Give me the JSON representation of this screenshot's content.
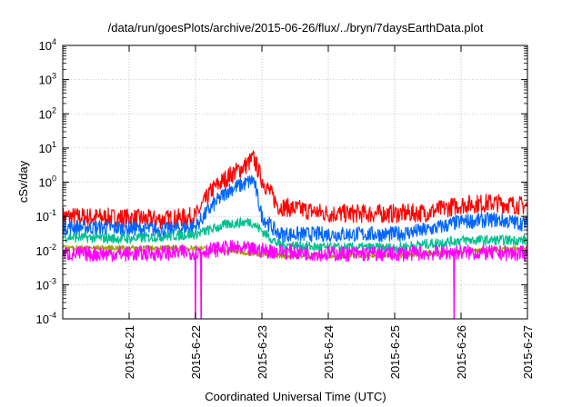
{
  "chart_data": {
    "type": "line",
    "title": "/data/run/goesPlots/archive/2015-06-26/flux/../bryn/7daysEarthData.plot",
    "xlabel": "Coordinated Universal Time (UTC)",
    "ylabel": "cSv/day",
    "y_scale": "log",
    "ylim": [
      0.0001,
      10000
    ],
    "y_ticks": [
      {
        "base": "10",
        "exp": "-4",
        "value": 0.0001
      },
      {
        "base": "10",
        "exp": "-3",
        "value": 0.001
      },
      {
        "base": "10",
        "exp": "-2",
        "value": 0.01
      },
      {
        "base": "10",
        "exp": "-1",
        "value": 0.1
      },
      {
        "base": "10",
        "exp": "0",
        "value": 1
      },
      {
        "base": "10",
        "exp": "1",
        "value": 10
      },
      {
        "base": "10",
        "exp": "2",
        "value": 100
      },
      {
        "base": "10",
        "exp": "3",
        "value": 1000
      },
      {
        "base": "10",
        "exp": "4",
        "value": 10000
      }
    ],
    "xlim": [
      "2015-06-20",
      "2015-06-27"
    ],
    "x_ticks": [
      "2015-6-21",
      "2015-6-22",
      "2015-6-23",
      "2015-6-24",
      "2015-6-25",
      "2015-6-26",
      "2015-6-27"
    ],
    "grid": true,
    "series": [
      {
        "color": "#ff0000",
        "x": [
          "2015-06-20 00:00",
          "2015-06-21 00:00",
          "2015-06-21 12:00",
          "2015-06-22 00:00",
          "2015-06-22 06:00",
          "2015-06-22 12:00",
          "2015-06-22 18:00",
          "2015-06-22 21:00",
          "2015-06-23 00:00",
          "2015-06-23 06:00",
          "2015-06-24 00:00",
          "2015-06-25 00:00",
          "2015-06-25 12:00",
          "2015-06-26 00:00",
          "2015-06-26 12:00",
          "2015-06-27 00:00"
        ],
        "values": [
          0.1,
          0.09,
          0.08,
          0.1,
          0.6,
          1.5,
          3,
          5,
          1.2,
          0.2,
          0.12,
          0.12,
          0.13,
          0.22,
          0.25,
          0.2
        ]
      },
      {
        "color": "#0066ff",
        "x": [
          "2015-06-20 00:00",
          "2015-06-21 00:00",
          "2015-06-21 12:00",
          "2015-06-22 00:00",
          "2015-06-22 06:00",
          "2015-06-22 12:00",
          "2015-06-22 18:00",
          "2015-06-22 21:00",
          "2015-06-23 00:00",
          "2015-06-23 06:00",
          "2015-06-24 00:00",
          "2015-06-25 00:00",
          "2015-06-25 12:00",
          "2015-06-26 00:00",
          "2015-06-26 12:00",
          "2015-06-27 00:00"
        ],
        "values": [
          0.05,
          0.045,
          0.04,
          0.05,
          0.2,
          0.6,
          0.9,
          1.2,
          0.1,
          0.03,
          0.03,
          0.03,
          0.04,
          0.07,
          0.08,
          0.06
        ]
      },
      {
        "color": "#00c090",
        "x": [
          "2015-06-20 00:00",
          "2015-06-21 00:00",
          "2015-06-22 00:00",
          "2015-06-22 12:00",
          "2015-06-22 20:00",
          "2015-06-23 06:00",
          "2015-06-24 00:00",
          "2015-06-25 00:00",
          "2015-06-26 00:00",
          "2015-06-27 00:00"
        ],
        "values": [
          0.025,
          0.022,
          0.03,
          0.06,
          0.07,
          0.015,
          0.012,
          0.012,
          0.02,
          0.02
        ]
      },
      {
        "color": "#a0a000",
        "x": [
          "2015-06-20 00:00",
          "2015-06-22 00:00",
          "2015-06-23 06:00",
          "2015-06-25 00:00",
          "2015-06-27 00:00"
        ],
        "values": [
          0.012,
          0.012,
          0.007,
          0.007,
          0.012
        ]
      },
      {
        "color": "#ff00ff",
        "x": [
          "2015-06-20 00:00",
          "2015-06-21 00:00",
          "2015-06-22 00:00",
          "2015-06-22 12:00",
          "2015-06-23 00:00",
          "2015-06-24 00:00",
          "2015-06-25 00:00",
          "2015-06-26 00:00",
          "2015-06-27 00:00"
        ],
        "values": [
          0.008,
          0.008,
          0.009,
          0.012,
          0.01,
          0.008,
          0.008,
          0.009,
          0.008
        ],
        "dropouts": [
          "2015-06-22 00:00",
          "2015-06-22 02:00",
          "2015-06-25 21:30"
        ]
      }
    ]
  }
}
